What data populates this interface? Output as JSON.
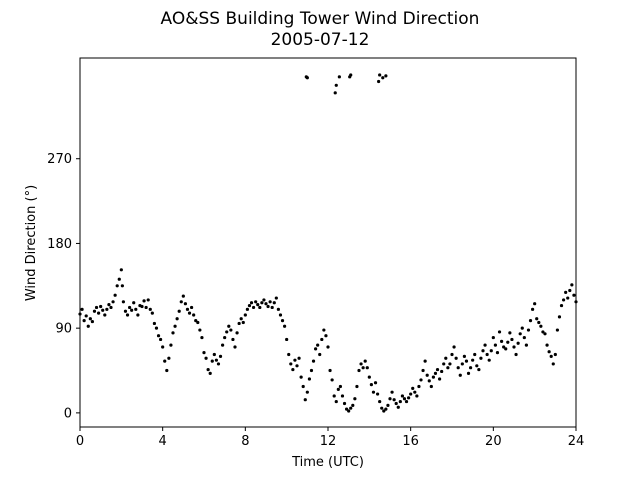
{
  "chart_data": {
    "type": "scatter",
    "title": "AO&SS Building Tower Wind Direction",
    "subtitle": "2005-07-12",
    "xlabel": "Time (UTC)",
    "ylabel": "Wind Direction (°)",
    "xlim": [
      0,
      24
    ],
    "ylim": [
      -15,
      377
    ],
    "x_ticks": [
      0,
      4,
      8,
      12,
      16,
      20,
      24
    ],
    "y_ticks": [
      0,
      90,
      180,
      270
    ],
    "grid": false,
    "legend": "none",
    "marker_color": "#000000",
    "series": [
      {
        "points": [
          [
            0.0,
            105
          ],
          [
            0.1,
            110
          ],
          [
            0.2,
            98
          ],
          [
            0.3,
            103
          ],
          [
            0.4,
            92
          ],
          [
            0.5,
            100
          ],
          [
            0.6,
            97
          ],
          [
            0.7,
            108
          ],
          [
            0.8,
            112
          ],
          [
            0.9,
            106
          ],
          [
            1.0,
            113
          ],
          [
            1.1,
            109
          ],
          [
            1.2,
            104
          ],
          [
            1.3,
            110
          ],
          [
            1.4,
            115
          ],
          [
            1.5,
            112
          ],
          [
            1.6,
            118
          ],
          [
            1.7,
            125
          ],
          [
            1.8,
            135
          ],
          [
            1.9,
            142
          ],
          [
            2.0,
            152
          ],
          [
            2.05,
            135
          ],
          [
            2.1,
            118
          ],
          [
            2.2,
            108
          ],
          [
            2.3,
            104
          ],
          [
            2.4,
            112
          ],
          [
            2.5,
            109
          ],
          [
            2.6,
            117
          ],
          [
            2.7,
            110
          ],
          [
            2.8,
            104
          ],
          [
            2.9,
            114
          ],
          [
            3.0,
            113
          ],
          [
            3.1,
            119
          ],
          [
            3.2,
            112
          ],
          [
            3.3,
            120
          ],
          [
            3.4,
            110
          ],
          [
            3.5,
            106
          ],
          [
            3.6,
            95
          ],
          [
            3.7,
            90
          ],
          [
            3.8,
            82
          ],
          [
            3.9,
            78
          ],
          [
            4.0,
            70
          ],
          [
            4.1,
            55
          ],
          [
            4.2,
            45
          ],
          [
            4.3,
            58
          ],
          [
            4.4,
            72
          ],
          [
            4.5,
            85
          ],
          [
            4.6,
            92
          ],
          [
            4.7,
            100
          ],
          [
            4.8,
            108
          ],
          [
            4.9,
            118
          ],
          [
            5.0,
            124
          ],
          [
            5.1,
            116
          ],
          [
            5.2,
            110
          ],
          [
            5.3,
            106
          ],
          [
            5.4,
            112
          ],
          [
            5.5,
            104
          ],
          [
            5.6,
            98
          ],
          [
            5.7,
            96
          ],
          [
            5.8,
            88
          ],
          [
            5.9,
            80
          ],
          [
            6.0,
            64
          ],
          [
            6.1,
            58
          ],
          [
            6.2,
            46
          ],
          [
            6.3,
            42
          ],
          [
            6.4,
            55
          ],
          [
            6.5,
            62
          ],
          [
            6.6,
            56
          ],
          [
            6.7,
            52
          ],
          [
            6.8,
            60
          ],
          [
            6.9,
            72
          ],
          [
            7.0,
            80
          ],
          [
            7.1,
            86
          ],
          [
            7.2,
            92
          ],
          [
            7.3,
            88
          ],
          [
            7.4,
            78
          ],
          [
            7.5,
            70
          ],
          [
            7.6,
            85
          ],
          [
            7.7,
            95
          ],
          [
            7.8,
            100
          ],
          [
            7.9,
            96
          ],
          [
            8.0,
            104
          ],
          [
            8.1,
            110
          ],
          [
            8.2,
            114
          ],
          [
            8.3,
            117
          ],
          [
            8.4,
            112
          ],
          [
            8.5,
            118
          ],
          [
            8.6,
            115
          ],
          [
            8.7,
            112
          ],
          [
            8.8,
            117
          ],
          [
            8.9,
            120
          ],
          [
            9.0,
            116
          ],
          [
            9.1,
            113
          ],
          [
            9.2,
            118
          ],
          [
            9.3,
            112
          ],
          [
            9.4,
            117
          ],
          [
            9.5,
            122
          ],
          [
            9.6,
            110
          ],
          [
            9.7,
            104
          ],
          [
            9.8,
            98
          ],
          [
            9.9,
            92
          ],
          [
            10.0,
            78
          ],
          [
            10.1,
            62
          ],
          [
            10.2,
            52
          ],
          [
            10.3,
            46
          ],
          [
            10.4,
            56
          ],
          [
            10.5,
            50
          ],
          [
            10.6,
            58
          ],
          [
            10.7,
            38
          ],
          [
            10.8,
            28
          ],
          [
            10.9,
            14
          ],
          [
            11.0,
            22
          ],
          [
            11.1,
            36
          ],
          [
            11.2,
            45
          ],
          [
            11.3,
            55
          ],
          [
            11.4,
            68
          ],
          [
            11.5,
            72
          ],
          [
            11.6,
            62
          ],
          [
            11.7,
            78
          ],
          [
            11.8,
            88
          ],
          [
            11.9,
            82
          ],
          [
            12.0,
            70
          ],
          [
            12.1,
            45
          ],
          [
            12.2,
            35
          ],
          [
            12.3,
            18
          ],
          [
            12.4,
            12
          ],
          [
            12.5,
            25
          ],
          [
            12.6,
            28
          ],
          [
            12.7,
            18
          ],
          [
            12.8,
            10
          ],
          [
            12.9,
            4
          ],
          [
            13.0,
            2
          ],
          [
            13.1,
            5
          ],
          [
            13.2,
            8
          ],
          [
            13.3,
            15
          ],
          [
            13.4,
            28
          ],
          [
            13.5,
            45
          ],
          [
            13.6,
            52
          ],
          [
            13.7,
            48
          ],
          [
            13.8,
            55
          ],
          [
            13.9,
            48
          ],
          [
            14.0,
            38
          ],
          [
            14.1,
            30
          ],
          [
            14.2,
            22
          ],
          [
            14.3,
            32
          ],
          [
            14.4,
            20
          ],
          [
            14.5,
            12
          ],
          [
            14.6,
            5
          ],
          [
            14.7,
            2
          ],
          [
            14.8,
            4
          ],
          [
            14.9,
            8
          ],
          [
            15.0,
            15
          ],
          [
            15.1,
            22
          ],
          [
            15.2,
            14
          ],
          [
            15.3,
            10
          ],
          [
            15.4,
            6
          ],
          [
            15.5,
            12
          ],
          [
            15.6,
            18
          ],
          [
            15.7,
            15
          ],
          [
            15.8,
            12
          ],
          [
            15.9,
            16
          ],
          [
            16.0,
            20
          ],
          [
            16.1,
            26
          ],
          [
            16.2,
            22
          ],
          [
            16.3,
            18
          ],
          [
            16.4,
            28
          ],
          [
            16.5,
            35
          ],
          [
            16.6,
            45
          ],
          [
            16.7,
            55
          ],
          [
            16.8,
            40
          ],
          [
            16.9,
            34
          ],
          [
            17.0,
            28
          ],
          [
            17.1,
            38
          ],
          [
            17.2,
            42
          ],
          [
            17.3,
            46
          ],
          [
            17.4,
            36
          ],
          [
            17.5,
            44
          ],
          [
            17.6,
            52
          ],
          [
            17.7,
            58
          ],
          [
            17.8,
            48
          ],
          [
            17.9,
            52
          ],
          [
            18.0,
            62
          ],
          [
            18.1,
            70
          ],
          [
            18.2,
            58
          ],
          [
            18.3,
            48
          ],
          [
            18.4,
            40
          ],
          [
            18.5,
            52
          ],
          [
            18.6,
            60
          ],
          [
            18.7,
            55
          ],
          [
            18.8,
            42
          ],
          [
            18.9,
            48
          ],
          [
            19.0,
            56
          ],
          [
            19.1,
            62
          ],
          [
            19.2,
            50
          ],
          [
            19.3,
            46
          ],
          [
            19.4,
            58
          ],
          [
            19.5,
            66
          ],
          [
            19.6,
            72
          ],
          [
            19.7,
            62
          ],
          [
            19.8,
            56
          ],
          [
            19.9,
            66
          ],
          [
            20.0,
            80
          ],
          [
            20.1,
            72
          ],
          [
            20.2,
            64
          ],
          [
            20.3,
            86
          ],
          [
            20.4,
            76
          ],
          [
            20.5,
            70
          ],
          [
            20.6,
            68
          ],
          [
            20.7,
            75
          ],
          [
            20.8,
            85
          ],
          [
            20.9,
            78
          ],
          [
            21.0,
            70
          ],
          [
            21.1,
            62
          ],
          [
            21.2,
            74
          ],
          [
            21.3,
            84
          ],
          [
            21.4,
            90
          ],
          [
            21.5,
            80
          ],
          [
            21.6,
            72
          ],
          [
            21.7,
            88
          ],
          [
            21.8,
            98
          ],
          [
            21.9,
            110
          ],
          [
            22.0,
            116
          ],
          [
            22.1,
            100
          ],
          [
            22.2,
            96
          ],
          [
            22.3,
            92
          ],
          [
            22.4,
            86
          ],
          [
            22.5,
            84
          ],
          [
            22.6,
            72
          ],
          [
            22.7,
            65
          ],
          [
            22.8,
            60
          ],
          [
            22.9,
            52
          ],
          [
            23.0,
            62
          ],
          [
            23.1,
            88
          ],
          [
            23.2,
            102
          ],
          [
            23.3,
            114
          ],
          [
            23.4,
            120
          ],
          [
            23.5,
            128
          ],
          [
            23.6,
            122
          ],
          [
            23.7,
            130
          ],
          [
            23.8,
            136
          ],
          [
            23.9,
            125
          ],
          [
            24.0,
            118
          ],
          [
            10.95,
            357
          ],
          [
            11.0,
            356
          ],
          [
            12.35,
            340
          ],
          [
            12.4,
            348
          ],
          [
            12.55,
            357
          ],
          [
            13.05,
            357
          ],
          [
            13.1,
            359
          ],
          [
            14.45,
            352
          ],
          [
            14.5,
            359
          ],
          [
            14.65,
            356
          ],
          [
            14.8,
            358
          ]
        ]
      }
    ]
  }
}
